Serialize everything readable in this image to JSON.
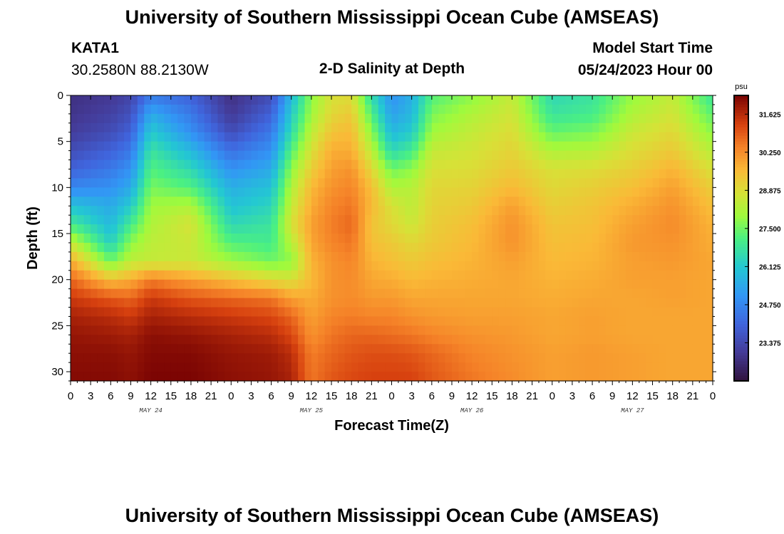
{
  "header": {
    "title": "University of Southern Mississippi Ocean Cube (AMSEAS)",
    "station": "KATA1",
    "coordinates": "30.2580N  88.2130W",
    "plot_title": "2-D Salinity at Depth",
    "model_start_label": "Model Start Time",
    "model_start_value": "05/24/2023 Hour 00"
  },
  "footer": {
    "title": "University of Southern Mississippi Ocean Cube (AMSEAS)"
  },
  "chart_data": {
    "type": "heatmap",
    "title": "2-D Salinity at Depth",
    "xlabel": "Forecast Time(Z)",
    "ylabel": "Depth (ft)",
    "x_hours_range": [
      0,
      96
    ],
    "y_range": [
      0,
      31
    ],
    "x_tick_hours": [
      0,
      3,
      6,
      9,
      12,
      15,
      18,
      21,
      24,
      27,
      30,
      33,
      36,
      39,
      42,
      45,
      48,
      51,
      54,
      57,
      60,
      63,
      66,
      69,
      72,
      75,
      78,
      81,
      84,
      87,
      90,
      93,
      96
    ],
    "x_tick_labels": [
      "0",
      "3",
      "6",
      "9",
      "12",
      "15",
      "18",
      "21",
      "0",
      "3",
      "6",
      "9",
      "12",
      "15",
      "18",
      "21",
      "0",
      "3",
      "6",
      "9",
      "12",
      "15",
      "18",
      "21",
      "0",
      "3",
      "6",
      "9",
      "12",
      "15",
      "18",
      "21",
      "0"
    ],
    "y_ticks": [
      0,
      5,
      10,
      15,
      20,
      25,
      30
    ],
    "y_tick_labels": [
      "0",
      "5",
      "10",
      "15",
      "20",
      "25",
      "30"
    ],
    "date_labels": [
      {
        "text": "MAY 24",
        "hour": 12
      },
      {
        "text": "MAY 25",
        "hour": 36
      },
      {
        "text": "MAY 26",
        "hour": 60
      },
      {
        "text": "MAY 27",
        "hour": 84
      }
    ],
    "colorbar": {
      "unit": "psu",
      "range": [
        22.0,
        32.3
      ],
      "ticks": [
        31.625,
        30.25,
        28.875,
        27.5,
        26.125,
        24.75,
        23.375
      ],
      "tick_labels": [
        "31.625",
        "30.250",
        "28.875",
        "27.500",
        "26.125",
        "24.750",
        "23.375"
      ]
    },
    "depth_levels": [
      0,
      2,
      4,
      6,
      8,
      10,
      12,
      14,
      16,
      18,
      20,
      22,
      24,
      26,
      28,
      31
    ],
    "profile_hours": [
      0,
      6,
      9,
      12,
      18,
      24,
      30,
      33,
      36,
      39,
      42,
      45,
      48,
      51,
      54,
      60,
      66,
      72,
      78,
      84,
      90,
      96
    ],
    "salinity_profiles": [
      [
        22.8,
        22.9,
        23.1,
        23.5,
        24.0,
        24.8,
        26.0,
        27.0,
        28.5,
        29.8,
        30.8,
        31.4,
        31.8,
        32.0,
        32.1,
        32.2
      ],
      [
        23.0,
        23.2,
        23.5,
        24.0,
        24.5,
        25.0,
        25.5,
        25.8,
        26.3,
        27.5,
        29.5,
        31.0,
        31.6,
        31.9,
        32.1,
        32.2
      ],
      [
        23.3,
        23.6,
        24.0,
        24.5,
        25.0,
        25.5,
        26.2,
        27.0,
        27.8,
        28.4,
        29.8,
        30.8,
        31.4,
        31.8,
        32.0,
        32.1
      ],
      [
        24.5,
        25.5,
        26.2,
        26.8,
        27.2,
        27.6,
        28.0,
        28.2,
        28.4,
        28.5,
        30.5,
        31.4,
        31.8,
        32.1,
        32.2,
        32.3
      ],
      [
        24.0,
        24.5,
        25.0,
        25.8,
        26.5,
        27.2,
        28.2,
        28.8,
        28.6,
        28.6,
        30.0,
        31.0,
        31.6,
        32.0,
        32.2,
        32.3
      ],
      [
        22.8,
        23.0,
        23.5,
        24.3,
        25.0,
        25.6,
        26.0,
        26.5,
        27.2,
        28.0,
        29.5,
        30.8,
        31.4,
        31.8,
        32.0,
        32.1
      ],
      [
        23.5,
        24.0,
        24.5,
        25.0,
        25.5,
        26.0,
        26.4,
        26.8,
        27.0,
        27.5,
        29.0,
        30.6,
        31.2,
        31.6,
        31.9,
        32.0
      ],
      [
        25.8,
        26.2,
        26.6,
        27.2,
        27.8,
        28.2,
        28.5,
        28.8,
        28.3,
        27.8,
        28.8,
        30.0,
        30.8,
        31.2,
        31.6,
        31.8
      ],
      [
        27.8,
        28.0,
        28.4,
        28.8,
        29.2,
        29.6,
        29.8,
        30.0,
        29.9,
        29.7,
        29.6,
        29.8,
        30.0,
        30.2,
        30.5,
        30.6
      ],
      [
        28.8,
        29.0,
        29.4,
        29.8,
        30.0,
        30.2,
        30.4,
        30.5,
        30.4,
        30.2,
        30.2,
        30.2,
        30.4,
        30.6,
        30.8,
        31.0
      ],
      [
        28.9,
        29.3,
        29.6,
        29.8,
        30.2,
        30.4,
        30.6,
        30.8,
        30.6,
        30.4,
        30.3,
        30.3,
        30.5,
        30.8,
        31.0,
        31.2
      ],
      [
        26.6,
        27.2,
        27.8,
        28.4,
        29.0,
        29.5,
        29.6,
        29.4,
        29.5,
        29.7,
        29.9,
        30.1,
        30.4,
        30.8,
        31.1,
        31.3
      ],
      [
        25.0,
        25.3,
        25.8,
        26.5,
        27.5,
        28.2,
        28.8,
        29.0,
        29.3,
        29.5,
        29.8,
        30.1,
        30.4,
        30.7,
        31.1,
        31.3
      ],
      [
        25.6,
        25.8,
        26.2,
        27.0,
        27.8,
        28.3,
        28.4,
        28.6,
        29.0,
        29.3,
        29.6,
        29.9,
        30.2,
        30.6,
        31.0,
        31.3
      ],
      [
        27.2,
        27.6,
        28.0,
        28.5,
        28.8,
        29.0,
        29.1,
        29.2,
        29.3,
        29.5,
        29.7,
        29.9,
        30.1,
        30.4,
        30.8,
        31.0
      ],
      [
        27.8,
        28.2,
        28.5,
        28.7,
        28.9,
        29.1,
        29.3,
        29.5,
        29.6,
        29.7,
        29.8,
        29.9,
        30.0,
        30.2,
        30.4,
        30.6
      ],
      [
        28.5,
        28.7,
        28.9,
        29.1,
        29.3,
        29.6,
        30.0,
        30.2,
        30.2,
        30.0,
        29.9,
        29.9,
        30.0,
        30.1,
        30.2,
        30.3
      ],
      [
        26.5,
        26.8,
        27.4,
        28.2,
        28.8,
        29.0,
        29.2,
        29.4,
        29.5,
        29.6,
        29.7,
        29.8,
        29.9,
        29.9,
        30.0,
        30.0
      ],
      [
        26.8,
        27.0,
        27.6,
        28.3,
        28.9,
        29.2,
        29.4,
        29.5,
        29.6,
        29.7,
        29.8,
        29.9,
        30.0,
        30.0,
        30.1,
        30.1
      ],
      [
        27.9,
        28.2,
        28.6,
        28.9,
        29.2,
        29.5,
        29.8,
        30.0,
        30.1,
        30.0,
        30.0,
        29.9,
        29.9,
        29.9,
        30.0,
        30.0
      ],
      [
        28.5,
        28.7,
        29.0,
        29.3,
        29.7,
        30.0,
        30.2,
        30.3,
        30.2,
        30.1,
        30.0,
        30.0,
        29.9,
        29.9,
        29.9,
        29.9
      ],
      [
        26.8,
        27.3,
        27.8,
        28.3,
        28.8,
        29.2,
        29.5,
        29.7,
        29.8,
        29.9,
        29.9,
        29.9,
        29.9,
        29.9,
        29.9,
        29.9
      ]
    ]
  }
}
